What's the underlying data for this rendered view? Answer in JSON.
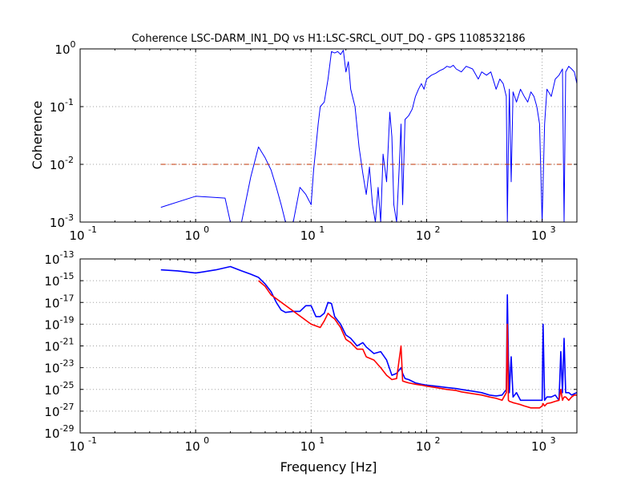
{
  "figure": {
    "title": "Coherence LSC-DARM_IN1_DQ vs H1:LSC-SRCL_OUT_DQ - GPS 1108532186"
  },
  "chart_data": [
    {
      "type": "line",
      "title": "Coherence LSC-DARM_IN1_DQ vs H1:LSC-SRCL_OUT_DQ - GPS 1108532186",
      "xlabel": "",
      "ylabel": "Coherence",
      "xscale": "log",
      "yscale": "log",
      "xlim": [
        0.1,
        2000
      ],
      "ylim": [
        0.001,
        1
      ],
      "grid": true,
      "xticks": [
        {
          "base": "10",
          "exp": "-1"
        },
        {
          "base": "10",
          "exp": "0"
        },
        {
          "base": "10",
          "exp": "1"
        },
        {
          "base": "10",
          "exp": "2"
        },
        {
          "base": "10",
          "exp": "3"
        }
      ],
      "yticks": [
        {
          "base": "10",
          "exp": "-3"
        },
        {
          "base": "10",
          "exp": "-2"
        },
        {
          "base": "10",
          "exp": "-1"
        },
        {
          "base": "10",
          "exp": "0"
        }
      ],
      "series": [
        {
          "color": "#0000ff",
          "x": [
            0.5,
            1.0,
            1.8,
            2.0,
            2.5,
            3.0,
            3.5,
            4.0,
            4.5,
            5.0,
            5.5,
            6.0,
            7.0,
            8.0,
            9.0,
            10.0,
            10.5,
            11.0,
            11.5,
            12.0,
            13.0,
            14.0,
            15.0,
            16.0,
            17.0,
            18.0,
            19.0,
            20.0,
            21.0,
            22.0,
            24.0,
            26.0,
            28.0,
            30.0,
            32.0,
            34.0,
            36.0,
            38.0,
            40.0,
            42.0,
            45.0,
            48.0,
            50.0,
            52.0,
            55.0,
            58.0,
            60.0,
            62.0,
            65.0,
            70.0,
            75.0,
            80.0,
            85.0,
            90.0,
            95.0,
            100.0,
            110.0,
            120.0,
            130.0,
            140.0,
            150.0,
            160.0,
            170.0,
            180.0,
            200.0,
            220.0,
            250.0,
            280.0,
            300.0,
            330.0,
            360.0,
            400.0,
            430.0,
            460.0,
            490.0,
            500.0,
            510.0,
            520.0,
            540.0,
            560.0,
            600.0,
            650.0,
            700.0,
            750.0,
            800.0,
            850.0,
            900.0,
            950.0,
            1000.0,
            1050.0,
            1100.0,
            1200.0,
            1300.0,
            1400.0,
            1500.0,
            1550.0,
            1600.0,
            1700.0,
            1800.0,
            1900.0,
            2000.0
          ],
          "y": [
            0.0018,
            0.0028,
            0.0026,
            0.001,
            0.001,
            0.006,
            0.02,
            0.013,
            0.008,
            0.004,
            0.002,
            0.001,
            0.001,
            0.004,
            0.003,
            0.002,
            0.008,
            0.02,
            0.05,
            0.1,
            0.12,
            0.3,
            0.9,
            0.85,
            0.9,
            0.8,
            0.95,
            0.4,
            0.6,
            0.2,
            0.1,
            0.02,
            0.007,
            0.003,
            0.009,
            0.002,
            0.001,
            0.004,
            0.001,
            0.015,
            0.005,
            0.08,
            0.03,
            0.002,
            0.001,
            0.01,
            0.05,
            0.002,
            0.06,
            0.07,
            0.09,
            0.15,
            0.2,
            0.25,
            0.2,
            0.3,
            0.35,
            0.38,
            0.42,
            0.45,
            0.5,
            0.48,
            0.52,
            0.45,
            0.4,
            0.5,
            0.45,
            0.3,
            0.4,
            0.35,
            0.4,
            0.2,
            0.3,
            0.25,
            0.15,
            0.001,
            0.02,
            0.2,
            0.005,
            0.18,
            0.12,
            0.2,
            0.15,
            0.12,
            0.18,
            0.15,
            0.1,
            0.05,
            0.001,
            0.05,
            0.2,
            0.15,
            0.3,
            0.35,
            0.45,
            0.001,
            0.4,
            0.5,
            0.45,
            0.4,
            0.25
          ]
        },
        {
          "color": "#c03000",
          "dashed": true,
          "x": [
            0.5,
            2000
          ],
          "y": [
            0.01,
            0.01
          ]
        }
      ]
    },
    {
      "type": "line",
      "title": "",
      "xlabel": "Frequency [Hz]",
      "ylabel": "",
      "xscale": "log",
      "yscale": "log",
      "xlim": [
        0.1,
        2000
      ],
      "ylim": [
        1e-29,
        1e-13
      ],
      "grid": true,
      "xticks": [
        {
          "base": "10",
          "exp": "-1"
        },
        {
          "base": "10",
          "exp": "0"
        },
        {
          "base": "10",
          "exp": "1"
        },
        {
          "base": "10",
          "exp": "2"
        },
        {
          "base": "10",
          "exp": "3"
        }
      ],
      "yticks": [
        {
          "base": "10",
          "exp": "-29"
        },
        {
          "base": "10",
          "exp": "-27"
        },
        {
          "base": "10",
          "exp": "-25"
        },
        {
          "base": "10",
          "exp": "-23"
        },
        {
          "base": "10",
          "exp": "-21"
        },
        {
          "base": "10",
          "exp": "-19"
        },
        {
          "base": "10",
          "exp": "-17"
        },
        {
          "base": "10",
          "exp": "-15"
        },
        {
          "base": "10",
          "exp": "-13"
        }
      ],
      "series": [
        {
          "color": "#0000ff",
          "x": [
            0.5,
            0.7,
            1.0,
            1.5,
            2.0,
            2.5,
            3.0,
            3.5,
            4.0,
            4.5,
            5.0,
            5.5,
            6.0,
            7.0,
            8.0,
            9.0,
            10.0,
            11.0,
            12.0,
            13.0,
            14.0,
            15.0,
            16.0,
            18.0,
            20.0,
            22.0,
            25.0,
            28.0,
            30.0,
            35.0,
            40.0,
            45.0,
            50.0,
            55.0,
            60.0,
            62.0,
            65.0,
            70.0,
            80.0,
            90.0,
            100.0,
            120.0,
            150.0,
            180.0,
            200.0,
            250.0,
            300.0,
            350.0,
            400.0,
            450.0,
            490.0,
            500.0,
            510.0,
            520.0,
            540.0,
            560.0,
            600.0,
            650.0,
            700.0,
            800.0,
            900.0,
            950.0,
            1000.0,
            1020.0,
            1050.0,
            1100.0,
            1200.0,
            1300.0,
            1400.0,
            1450.0,
            1500.0,
            1550.0,
            1600.0,
            1700.0,
            1800.0,
            1900.0,
            2000.0
          ],
          "y": [
            1e-14,
            8e-15,
            5e-15,
            1e-14,
            2e-14,
            8e-15,
            4e-15,
            2e-15,
            5e-16,
            1e-16,
            1e-17,
            2e-18,
            1.2e-18,
            1.5e-18,
            1.5e-18,
            5e-18,
            5e-18,
            5e-19,
            5e-19,
            1e-18,
            1e-17,
            8e-18,
            5e-19,
            1e-19,
            1e-20,
            5e-21,
            1e-21,
            2e-21,
            8e-22,
            2e-22,
            3e-22,
            5e-23,
            2e-24,
            3e-24,
            1e-23,
            3e-24,
            1e-24,
            8e-25,
            4e-25,
            3e-25,
            2.5e-25,
            2e-25,
            1.5e-25,
            1.2e-25,
            1e-25,
            7e-26,
            5e-26,
            3e-26,
            2.5e-26,
            3e-26,
            1e-25,
            5e-17,
            1e-22,
            5e-26,
            1e-22,
            2e-26,
            5e-26,
            1e-26,
            1e-26,
            1e-26,
            1e-26,
            1e-26,
            1e-26,
            1e-19,
            1e-26,
            2e-26,
            2e-26,
            3e-26,
            1e-26,
            3e-22,
            5e-26,
            5e-21,
            5e-26,
            5e-26,
            3e-26,
            4e-26,
            5e-26
          ]
        },
        {
          "color": "#ff0000",
          "x": [
            3.5,
            4.0,
            4.5,
            10.0,
            12.0,
            13.0,
            14.0,
            15.0,
            16.0,
            18.0,
            20.0,
            22.0,
            25.0,
            28.0,
            30.0,
            35.0,
            40.0,
            45.0,
            50.0,
            55.0,
            60.0,
            62.0,
            65.0,
            70.0,
            80.0,
            90.0,
            100.0,
            120.0,
            150.0,
            180.0,
            200.0,
            250.0,
            300.0,
            350.0,
            400.0,
            450.0,
            490.0,
            500.0,
            510.0,
            520.0,
            540.0,
            560.0,
            600.0,
            650.0,
            700.0,
            800.0,
            900.0,
            950.0,
            1000.0,
            1020.0,
            1050.0,
            1100.0,
            1200.0,
            1300.0,
            1400.0,
            1450.0,
            1500.0,
            1550.0,
            1600.0,
            1700.0,
            1800.0,
            1900.0,
            2000.0
          ],
          "y": [
            1e-15,
            3e-16,
            5e-17,
            1e-19,
            5e-20,
            2e-19,
            1e-18,
            5e-19,
            3e-19,
            5e-20,
            4e-21,
            2e-21,
            5e-22,
            5e-22,
            1e-22,
            5e-23,
            1e-23,
            2e-24,
            8e-25,
            1e-24,
            1e-21,
            6e-25,
            5e-25,
            4e-25,
            3e-25,
            2.5e-25,
            2e-25,
            1.5e-25,
            1e-25,
            8e-26,
            6e-26,
            4e-26,
            3e-26,
            2e-26,
            1.5e-26,
            1e-26,
            5e-26,
            1e-19,
            1e-26,
            8e-27,
            7e-27,
            6e-27,
            5e-27,
            4e-27,
            3e-27,
            2e-27,
            2e-27,
            2e-27,
            3e-27,
            5e-27,
            3e-27,
            5e-27,
            6e-27,
            8e-27,
            1e-26,
            1e-25,
            1e-26,
            2e-26,
            2e-26,
            1e-26,
            2e-26,
            3e-26,
            3e-26
          ]
        }
      ]
    }
  ]
}
